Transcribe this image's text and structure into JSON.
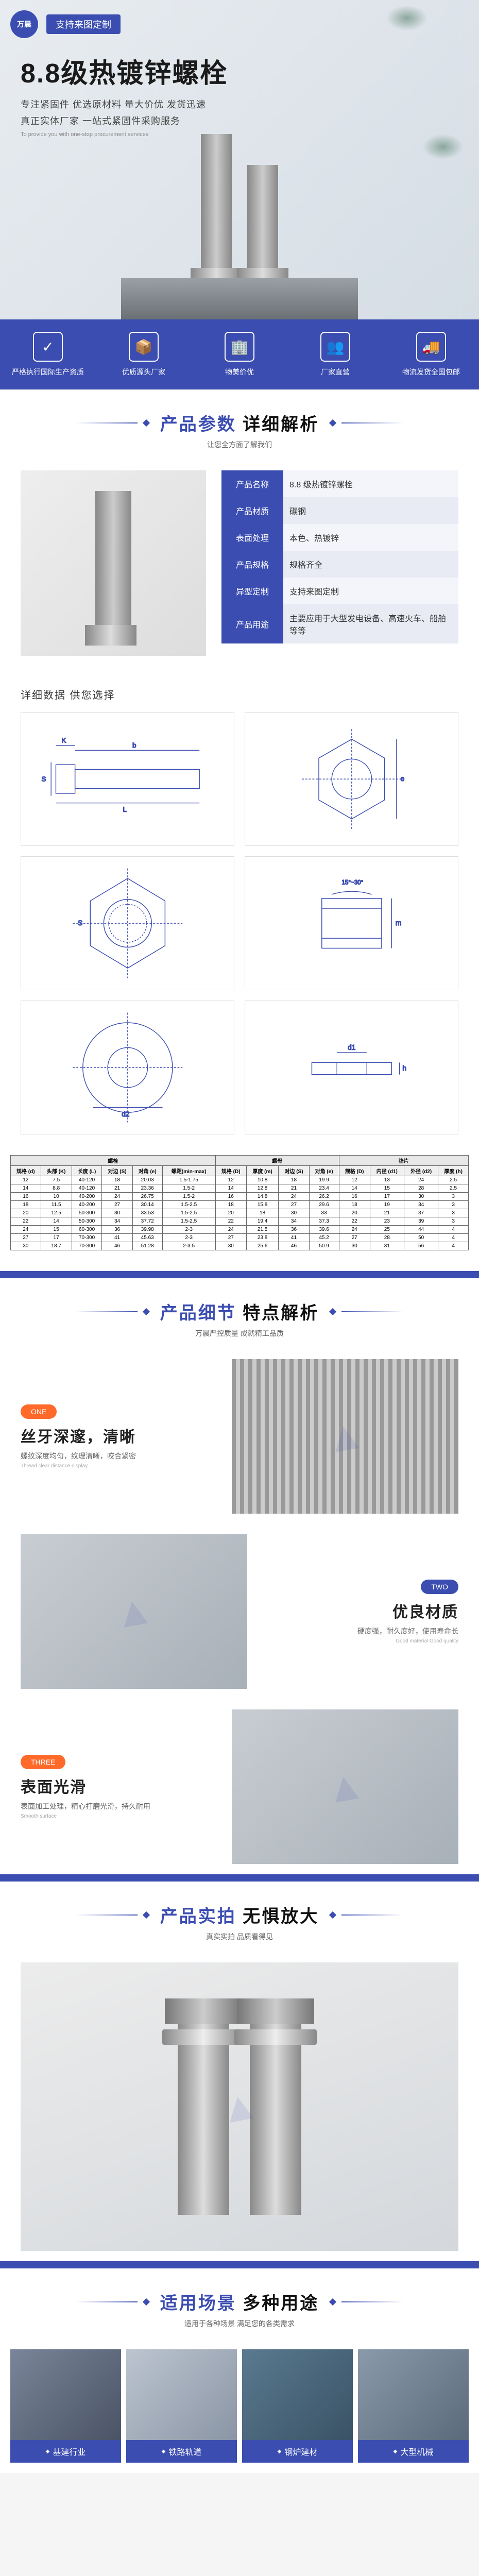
{
  "hero": {
    "logo_text": "万晨",
    "custom_btn": "支持来图定制",
    "title": "8.8级热镀锌螺栓",
    "sub1": "专注紧固件 优选原材料 量大价优 发货迅速",
    "sub2": "真正实体厂家 一站式紧固件采购服务",
    "en": "To provide you with one-stop procurement services"
  },
  "features": [
    {
      "icon": "✓",
      "label": "严格执行国际生产资质"
    },
    {
      "icon": "📦",
      "label": "优质源头厂家"
    },
    {
      "icon": "🏢",
      "label": "物美价优"
    },
    {
      "icon": "👥",
      "label": "厂家直营"
    },
    {
      "icon": "🚚",
      "label": "物流发货全国包邮"
    }
  ],
  "section_params": {
    "title_blue": "产品参数",
    "title_black": "详细解析",
    "sub": "让您全方面了解我们"
  },
  "params": [
    {
      "label": "产品名称",
      "value": "8.8 级热镀锌螺栓"
    },
    {
      "label": "产品材质",
      "value": "碳钢"
    },
    {
      "label": "表面处理",
      "value": "本色、热镀锌"
    },
    {
      "label": "产品规格",
      "value": "规格齐全"
    },
    {
      "label": "异型定制",
      "value": "支持来图定制"
    },
    {
      "label": "产品用途",
      "value": "主要应用于大型发电设备、高速火车、船舶等等"
    }
  ],
  "diag_head": "详细数据 供您选择",
  "spec_table": {
    "group_headers": [
      "螺栓",
      "螺母",
      "垫片"
    ],
    "sub_headers": [
      "规格 (d)",
      "头部 (K)",
      "长度 (L)",
      "对边 (S)",
      "对角 (e)",
      "螺距(min-max)",
      "规格 (D)",
      "厚度 (m)",
      "对边 (S)",
      "对角 (e)",
      "规格 (D)",
      "内径 (d1)",
      "外径 (d2)",
      "厚度 (h)"
    ],
    "rows": [
      [
        "12",
        "7.5",
        "40-120",
        "18",
        "20.03",
        "1.5-1.75",
        "12",
        "10.8",
        "18",
        "19.9",
        "12",
        "13",
        "24",
        "2.5"
      ],
      [
        "14",
        "8.8",
        "40-120",
        "21",
        "23.36",
        "1.5-2",
        "14",
        "12.8",
        "21",
        "23.4",
        "14",
        "15",
        "28",
        "2.5"
      ],
      [
        "16",
        "10",
        "40-200",
        "24",
        "26.75",
        "1.5-2",
        "16",
        "14.8",
        "24",
        "26.2",
        "16",
        "17",
        "30",
        "3"
      ],
      [
        "18",
        "11.5",
        "40-200",
        "27",
        "30.14",
        "1.5-2.5",
        "18",
        "15.8",
        "27",
        "29.6",
        "18",
        "19",
        "34",
        "3"
      ],
      [
        "20",
        "12.5",
        "50-300",
        "30",
        "33.53",
        "1.5-2.5",
        "20",
        "18",
        "30",
        "33",
        "20",
        "21",
        "37",
        "3"
      ],
      [
        "22",
        "14",
        "50-300",
        "34",
        "37.72",
        "1.5-2.5",
        "22",
        "19.4",
        "34",
        "37.3",
        "22",
        "23",
        "39",
        "3"
      ],
      [
        "24",
        "15",
        "60-300",
        "36",
        "39.98",
        "2-3",
        "24",
        "21.5",
        "36",
        "39.6",
        "24",
        "25",
        "44",
        "4"
      ],
      [
        "27",
        "17",
        "70-300",
        "41",
        "45.63",
        "2-3",
        "27",
        "23.8",
        "41",
        "45.2",
        "27",
        "28",
        "50",
        "4"
      ],
      [
        "30",
        "18.7",
        "70-300",
        "46",
        "51.28",
        "2-3.5",
        "30",
        "25.6",
        "46",
        "50.9",
        "30",
        "31",
        "56",
        "4"
      ]
    ]
  },
  "section_detail": {
    "title_blue": "产品细节",
    "title_black": "特点解析",
    "sub": "万晨严控质量 成就精工品质"
  },
  "details": [
    {
      "badge": "ONE",
      "badge_class": "",
      "title": "丝牙深邃，清晰",
      "desc": "螺纹深度均匀，纹理清晰，咬合紧密",
      "en": "Thread clear distance display"
    },
    {
      "badge": "TWO",
      "badge_class": "two",
      "title": "优良材质",
      "desc": "硬度强，耐久度好，使用寿命长",
      "en": "Good material Good quality"
    },
    {
      "badge": "THREE",
      "badge_class": "three",
      "title": "表面光滑",
      "desc": "表面加工处理，精心打磨光滑，持久耐用",
      "en": "Smooth surface"
    }
  ],
  "section_realshot": {
    "title_blue": "产品实拍",
    "title_black": "无惧放大",
    "sub": "真实实拍 品质看得见"
  },
  "section_scene": {
    "title_blue": "适用场景",
    "title_black": "多种用途",
    "sub": "适用于各种场景 满足您的各类需求"
  },
  "scenes": [
    {
      "label": "基建行业"
    },
    {
      "label": "铁路轨道"
    },
    {
      "label": "钢炉建材"
    },
    {
      "label": "大型机械"
    }
  ],
  "colors": {
    "brand": "#3b4db0",
    "accent": "#ff6a2b",
    "text": "#333333",
    "bg_light": "#f3f5fa"
  }
}
